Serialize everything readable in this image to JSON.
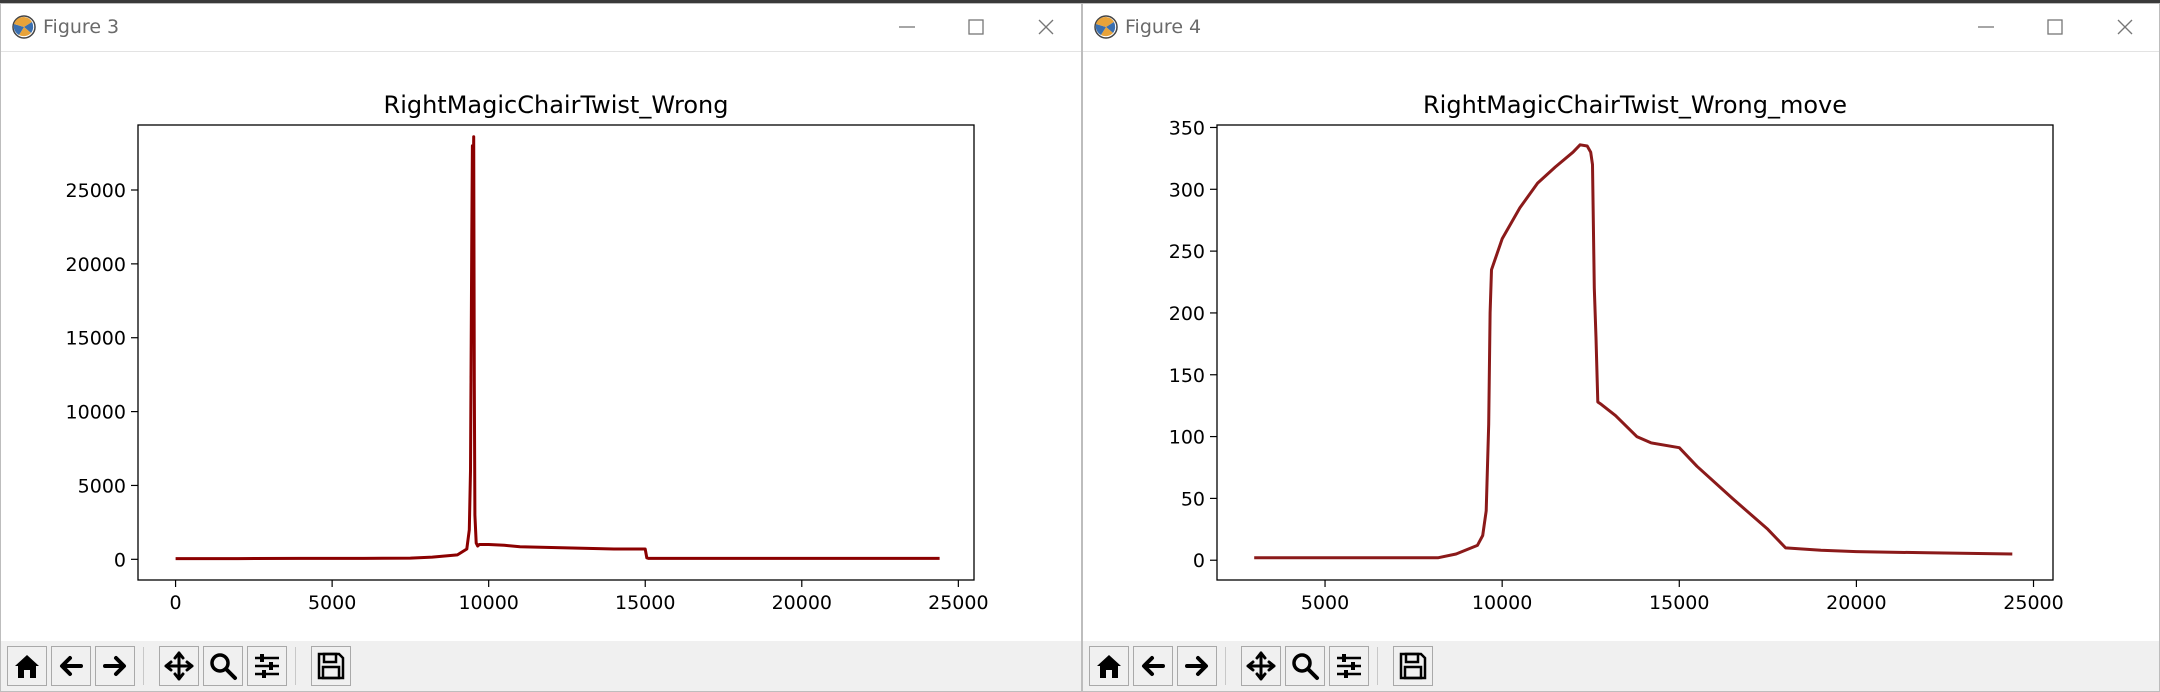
{
  "windows": [
    {
      "title": "Figure 3",
      "chart_data": {
        "type": "line",
        "title": "RightMagicChairTwist_Wrong",
        "xlabel": "",
        "ylabel": "",
        "xlim": [
          -1200,
          25500
        ],
        "ylim": [
          -1400,
          29400
        ],
        "x_ticks": [
          0,
          5000,
          10000,
          15000,
          20000,
          25000
        ],
        "y_ticks": [
          0,
          5000,
          10000,
          15000,
          20000,
          25000
        ],
        "color": "#8b0000",
        "series": [
          {
            "x": [
              0,
              2000,
              4000,
              6000,
              7500,
              8200,
              9000,
              9300,
              9380,
              9420,
              9460,
              9480,
              9500,
              9520,
              9540,
              9560,
              9600,
              9650,
              9700,
              10000,
              10500,
              11000,
              12000,
              13000,
              14000,
              15000,
              15050,
              15100,
              16000,
              18000,
              20000,
              22000,
              24400
            ],
            "y": [
              50,
              50,
              60,
              60,
              80,
              150,
              300,
              700,
              2000,
              6000,
              22000,
              28000,
              23000,
              28600,
              12000,
              3000,
              1100,
              900,
              1000,
              1000,
              950,
              850,
              800,
              750,
              700,
              700,
              100,
              60,
              60,
              60,
              60,
              60,
              60
            ]
          }
        ]
      }
    },
    {
      "title": "Figure 4",
      "chart_data": {
        "type": "line",
        "title": "RightMagicChairTwist_Wrong_move",
        "xlabel": "",
        "ylabel": "",
        "xlim": [
          1950,
          25550
        ],
        "ylim": [
          -16,
          352
        ],
        "x_ticks": [
          5000,
          10000,
          15000,
          20000,
          25000
        ],
        "y_ticks": [
          0,
          50,
          100,
          150,
          200,
          250,
          300,
          350
        ],
        "color": "#8b1a1a",
        "series": [
          {
            "x": [
              3000,
              5000,
              7000,
              8200,
              8700,
              9300,
              9450,
              9550,
              9620,
              9660,
              9700,
              10000,
              10500,
              11000,
              11500,
              12000,
              12200,
              12400,
              12500,
              12550,
              12600,
              12650,
              12700,
              12800,
              13200,
              13800,
              14200,
              15000,
              15500,
              16500,
              17500,
              18000,
              19000,
              20000,
              22000,
              24400
            ],
            "y": [
              2,
              2,
              2,
              2,
              5,
              12,
              20,
              40,
              110,
              200,
              235,
              260,
              285,
              305,
              318,
              330,
              336,
              335,
              330,
              320,
              220,
              180,
              128,
              126,
              117,
              100,
              95,
              91,
              76,
              50,
              25,
              10,
              8,
              7,
              6,
              5
            ]
          }
        ]
      }
    }
  ],
  "toolbar": {
    "buttons": [
      "home-icon",
      "back-arrow-icon",
      "forward-arrow-icon",
      "pan-icon",
      "zoom-icon",
      "configure-subplots-icon",
      "save-icon"
    ]
  }
}
